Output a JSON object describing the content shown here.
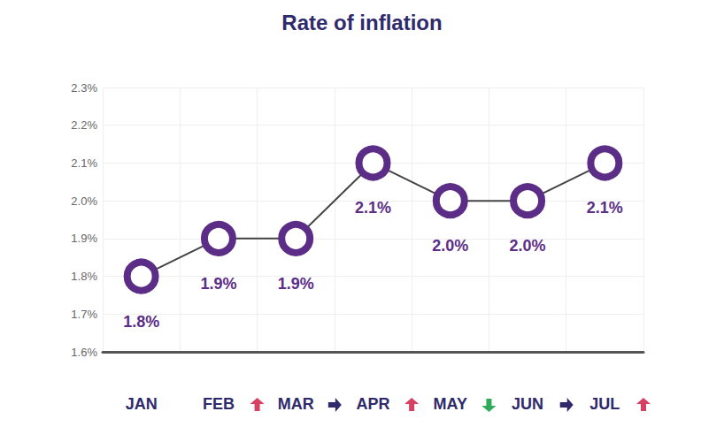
{
  "chart_data": {
    "type": "line",
    "title": "Rate of inflation",
    "categories": [
      "JAN",
      "FEB",
      "MAR",
      "APR",
      "MAY",
      "JUN",
      "JUL"
    ],
    "values": [
      1.8,
      1.9,
      1.9,
      2.1,
      2.0,
      2.0,
      2.1
    ],
    "value_labels": [
      "1.8%",
      "1.9%",
      "1.9%",
      "2.1%",
      "2.0%",
      "2.0%",
      "2.1%"
    ],
    "color": "#5b2d86",
    "ylim": [
      1.6,
      2.3
    ],
    "yticks": [
      {
        "value": 1.6,
        "label": "1.6%"
      },
      {
        "value": 1.7,
        "label": "1.7%"
      },
      {
        "value": 1.8,
        "label": "1.8%"
      },
      {
        "value": 1.9,
        "label": "1.9%"
      },
      {
        "value": 2.0,
        "label": "2.0%"
      },
      {
        "value": 2.1,
        "label": "2.1%"
      },
      {
        "value": 2.2,
        "label": "2.2%"
      },
      {
        "value": 2.3,
        "label": "2.3%"
      }
    ],
    "grid": true,
    "data_labels": true,
    "marker": "circle"
  }
}
